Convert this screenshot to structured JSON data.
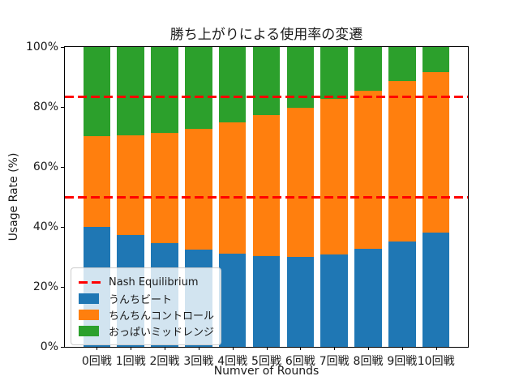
{
  "chart_data": {
    "type": "bar",
    "stacked": true,
    "title": "勝ち上がりによる使用率の変遷",
    "xlabel": "Numver of Rounds",
    "ylabel": "Usage Rate (%)",
    "categories": [
      "0回戦",
      "1回戦",
      "2回戦",
      "3回戦",
      "4回戦",
      "5回戦",
      "6回戦",
      "7回戦",
      "8回戦",
      "9回戦",
      "10回戦"
    ],
    "series": [
      {
        "name": "うんちビート",
        "color": "#1f77b4",
        "values": [
          40.0,
          37.3,
          34.7,
          32.5,
          31.0,
          30.3,
          30.0,
          30.7,
          32.6,
          35.0,
          38.0
        ]
      },
      {
        "name": "ちんちんコントロール",
        "color": "#ff7f0e",
        "values": [
          30.2,
          33.3,
          36.6,
          40.2,
          43.9,
          47.1,
          49.7,
          51.9,
          52.9,
          53.7,
          53.6
        ]
      },
      {
        "name": "おっぱいミッドレンジ",
        "color": "#2ca02c",
        "values": [
          29.8,
          29.4,
          28.7,
          27.3,
          25.1,
          22.6,
          20.3,
          17.4,
          14.5,
          11.3,
          8.4
        ]
      }
    ],
    "reference_lines": [
      {
        "label": "Nash Equilibrium",
        "color": "#ff0000",
        "style": "dashed",
        "y_values": [
          50,
          83.3
        ]
      }
    ],
    "ylim": [
      0,
      100
    ],
    "yticks": [
      {
        "value": 0,
        "label": "0%"
      },
      {
        "value": 20,
        "label": "20%"
      },
      {
        "value": 40,
        "label": "40%"
      },
      {
        "value": 60,
        "label": "60%"
      },
      {
        "value": 80,
        "label": "80%"
      },
      {
        "value": 100,
        "label": "100%"
      }
    ],
    "legend": {
      "position": "lower left",
      "entries": [
        "Nash Equilibrium",
        "うんちビート",
        "ちんちんコントロール",
        "おっぱいミッドレンジ"
      ]
    },
    "grid": false
  }
}
